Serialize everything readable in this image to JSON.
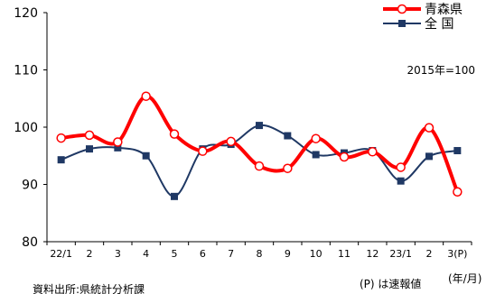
{
  "chart_data": {
    "type": "line",
    "categories": [
      "22/1",
      "2",
      "3",
      "4",
      "5",
      "6",
      "7",
      "8",
      "9",
      "10",
      "11",
      "12",
      "23/1",
      "2",
      "3(P)"
    ],
    "ylim": [
      80,
      120
    ],
    "yticks": [
      80,
      90,
      100,
      110,
      120
    ],
    "grid": false,
    "legend_position": "top-right",
    "series": [
      {
        "name": "青森県",
        "color": "#ff0000",
        "marker": "circle",
        "smooth": true,
        "values": [
          98.1,
          98.6,
          97.4,
          105.4,
          98.8,
          95.8,
          97.5,
          93.2,
          92.8,
          98.0,
          94.8,
          95.7,
          93.0,
          99.9,
          88.7
        ]
      },
      {
        "name": "全 国",
        "color": "#1f3864",
        "marker": "square",
        "smooth": true,
        "values": [
          94.3,
          96.2,
          96.4,
          95.0,
          87.9,
          96.2,
          97.0,
          100.3,
          98.5,
          95.2,
          95.5,
          95.9,
          90.6,
          94.9,
          95.9
        ]
      }
    ]
  },
  "annotations": {
    "base_note": "2015年=100",
    "source": "資料出所:県統計分析課",
    "prelim_note": "(P) は速報値",
    "unit": "(年/月)"
  }
}
